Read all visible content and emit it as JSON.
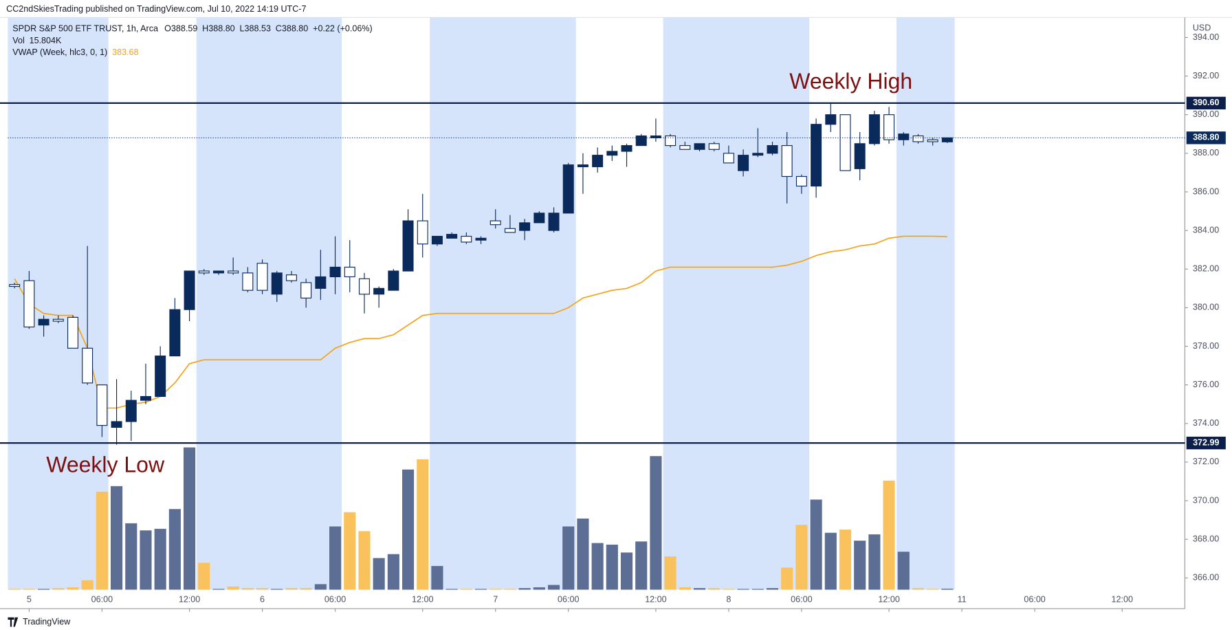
{
  "header": "CC2ndSkiesTrading published on TradingView.com, Jul 10, 2022 14:19 UTC-7",
  "footer": "TradingView",
  "chart_data": {
    "type": "candlestick",
    "legend": {
      "symbol": "SPDR S&P 500 ETF TRUST, 1h, Arca",
      "ohlc": [
        "O388.59",
        "H388.80",
        "L388.53",
        "C388.80",
        "+0.22 (+0.06%)"
      ],
      "volume_label": "Vol",
      "volume_value_label": "15.804K",
      "vwap_label": "VWAP (Week, hlc3, 0, 1)",
      "vwap_value_label": "383.68"
    },
    "currency": "USD",
    "annotations": [
      "Weekly High",
      "Weekly Low"
    ],
    "x": [
      -1,
      0,
      1,
      2,
      3,
      4,
      5,
      6,
      7,
      8,
      9,
      10,
      11,
      12,
      13,
      14,
      15,
      16,
      17,
      18,
      19,
      20,
      21,
      22,
      23,
      24,
      25,
      26,
      27,
      28,
      29,
      30,
      31,
      32,
      33,
      34,
      35,
      36,
      37,
      38,
      39,
      40,
      41,
      42,
      43,
      44,
      45,
      46,
      47,
      48,
      49,
      50,
      51,
      52,
      53,
      54,
      55,
      56,
      57,
      58,
      59,
      60,
      61,
      62,
      63
    ],
    "open": [
      381.2,
      381.4,
      379.1,
      379.4,
      379.5,
      377.9,
      376.0,
      373.8,
      374.1,
      375.2,
      375.4,
      377.5,
      379.9,
      381.9,
      381.8,
      381.9,
      381.8,
      382.3,
      380.7,
      381.7,
      381.3,
      381.0,
      381.6,
      382.1,
      381.5,
      380.7,
      380.9,
      381.9,
      384.5,
      383.3,
      383.6,
      383.7,
      383.5,
      384.5,
      384.1,
      384.0,
      384.4,
      384.0,
      384.9,
      387.3,
      387.3,
      387.9,
      388.1,
      388.4,
      388.8,
      388.9,
      388.4,
      388.2,
      388.5,
      388.0,
      387.1,
      387.9,
      388.0,
      388.4,
      386.8,
      386.3,
      389.5,
      390.0,
      387.2,
      388.5,
      390.0,
      388.7,
      388.9,
      388.7,
      388.59
    ],
    "high": [
      381.3,
      381.9,
      379.6,
      379.6,
      379.6,
      383.2,
      376.0,
      376.3,
      375.7,
      377.1,
      378.0,
      380.5,
      381.9,
      382.0,
      381.9,
      382.6,
      382.1,
      382.5,
      381.9,
      381.9,
      381.5,
      383.0,
      383.7,
      383.5,
      381.8,
      381.1,
      382.0,
      385.1,
      385.9,
      383.7,
      383.9,
      383.9,
      383.7,
      385.1,
      384.8,
      384.6,
      385.0,
      385.2,
      387.5,
      388.0,
      388.3,
      388.4,
      388.5,
      389.0,
      389.8,
      389.0,
      388.6,
      388.5,
      388.6,
      388.4,
      388.2,
      389.3,
      388.6,
      389.1,
      386.9,
      389.8,
      390.6,
      390.0,
      389.1,
      390.2,
      390.4,
      389.1,
      389.0,
      388.8,
      388.8
    ],
    "low": [
      381.0,
      378.9,
      378.5,
      379.2,
      377.9,
      376.0,
      373.3,
      372.9,
      373.1,
      375.0,
      375.4,
      377.5,
      379.3,
      381.7,
      381.7,
      381.7,
      380.8,
      380.7,
      380.3,
      381.3,
      380.0,
      380.4,
      380.7,
      380.8,
      379.7,
      380.0,
      380.9,
      381.9,
      382.6,
      383.2,
      383.6,
      383.3,
      383.3,
      384.1,
      383.9,
      383.5,
      384.4,
      383.9,
      384.9,
      385.9,
      387.0,
      387.6,
      387.3,
      388.4,
      388.6,
      388.3,
      388.2,
      388.1,
      388.1,
      387.5,
      386.8,
      387.8,
      387.9,
      385.4,
      385.9,
      385.7,
      389.1,
      387.1,
      386.6,
      388.4,
      388.5,
      388.4,
      388.5,
      388.4,
      388.53
    ],
    "close": [
      381.1,
      379.0,
      379.4,
      379.3,
      377.9,
      376.1,
      373.9,
      374.1,
      375.2,
      375.4,
      377.5,
      379.9,
      381.9,
      381.8,
      381.9,
      381.8,
      380.9,
      380.9,
      381.8,
      381.4,
      380.5,
      381.6,
      382.1,
      381.6,
      380.7,
      381.0,
      381.9,
      384.5,
      383.3,
      383.7,
      383.8,
      383.4,
      383.6,
      384.3,
      383.9,
      384.4,
      384.9,
      384.9,
      387.4,
      387.4,
      387.9,
      388.1,
      388.4,
      388.9,
      388.9,
      388.4,
      388.2,
      388.5,
      388.2,
      387.5,
      387.9,
      388.0,
      388.4,
      386.8,
      386.3,
      389.5,
      390.0,
      387.1,
      388.5,
      390.0,
      388.7,
      389.0,
      388.6,
      388.6,
      388.8
    ],
    "volume": [
      12.5,
      12.5,
      12.5,
      25,
      37.5,
      150,
      1550,
      1637.5,
      1050,
      937.5,
      962.5,
      1275,
      2250,
      425,
      12.5,
      50,
      25,
      25,
      12.5,
      25,
      25,
      87.5,
      1000,
      1225,
      925,
      500,
      562.5,
      1900,
      2062.5,
      375,
      12.5,
      12.5,
      12.5,
      12.5,
      12.5,
      25,
      37.5,
      75,
      1000,
      1125,
      737.5,
      712.5,
      587.5,
      762.5,
      2112.5,
      525,
      37.5,
      25,
      25,
      12.5,
      12.5,
      12.5,
      25,
      350,
      1025,
      1425,
      900,
      950,
      775,
      875,
      1725,
      600,
      25,
      12.5,
      15.804
    ],
    "vwap": [
      381.5,
      380.2,
      379.7,
      379.6,
      379.6,
      377.9,
      374.8,
      374.8,
      375.0,
      375.1,
      375.4,
      376.1,
      377.1,
      377.3,
      377.3,
      377.3,
      377.3,
      377.3,
      377.3,
      377.3,
      377.3,
      377.3,
      377.9,
      378.2,
      378.4,
      378.4,
      378.6,
      379.1,
      379.6,
      379.7,
      379.7,
      379.7,
      379.7,
      379.7,
      379.7,
      379.7,
      379.7,
      379.7,
      380.0,
      380.5,
      380.7,
      380.9,
      381.0,
      381.3,
      381.9,
      382.1,
      382.1,
      382.1,
      382.1,
      382.1,
      382.1,
      382.1,
      382.1,
      382.2,
      382.4,
      382.7,
      382.9,
      383.0,
      383.2,
      383.3,
      383.6,
      383.7,
      383.7,
      383.7,
      383.68
    ],
    "hlines": [
      {
        "value": 390.6,
        "label": "390.60"
      },
      {
        "value": 372.99,
        "label": "372.99"
      }
    ],
    "last_price": {
      "value": 388.8,
      "label": "388.80"
    },
    "xlim": [
      -1.46,
      79.3
    ],
    "ylim": [
      365.39,
      395.04
    ],
    "vlim": [
      0,
      3000
    ],
    "xticks": [
      {
        "value": 0,
        "label": "5"
      },
      {
        "value": 5,
        "label": "06:00"
      },
      {
        "value": 11,
        "label": "12:00"
      },
      {
        "value": 16,
        "label": "6"
      },
      {
        "value": 21,
        "label": "06:00"
      },
      {
        "value": 27,
        "label": "12:00"
      },
      {
        "value": 32,
        "label": "7"
      },
      {
        "value": 37,
        "label": "06:00"
      },
      {
        "value": 43,
        "label": "12:00"
      },
      {
        "value": 48,
        "label": "8"
      },
      {
        "value": 53,
        "label": "06:00"
      },
      {
        "value": 59,
        "label": "12:00"
      },
      {
        "value": 64,
        "label": "11"
      },
      {
        "value": 69,
        "label": "06:00"
      },
      {
        "value": 75,
        "label": "12:00"
      }
    ],
    "yticks": [
      {
        "value": 366,
        "label": "366.00"
      },
      {
        "value": 368,
        "label": "368.00"
      },
      {
        "value": 370,
        "label": "370.00"
      },
      {
        "value": 372,
        "label": "372.00"
      },
      {
        "value": 374,
        "label": "374.00"
      },
      {
        "value": 376,
        "label": "376.00"
      },
      {
        "value": 378,
        "label": "378.00"
      },
      {
        "value": 380,
        "label": "380.00"
      },
      {
        "value": 382,
        "label": "382.00"
      },
      {
        "value": 384,
        "label": "384.00"
      },
      {
        "value": 386,
        "label": "386.00"
      },
      {
        "value": 388,
        "label": "388.00"
      },
      {
        "value": 390,
        "label": "390.00"
      },
      {
        "value": 392,
        "label": "392.00"
      },
      {
        "value": 394,
        "label": "394.00"
      }
    ],
    "grid": false,
    "up_color": "#0b2a5c",
    "down_color": "#ffffff",
    "volume_up_color": "#5c6e94",
    "volume_down_color": "#f9c25c",
    "vwap_color": "#f5a31b",
    "hline_color": "#0b1f4a"
  }
}
